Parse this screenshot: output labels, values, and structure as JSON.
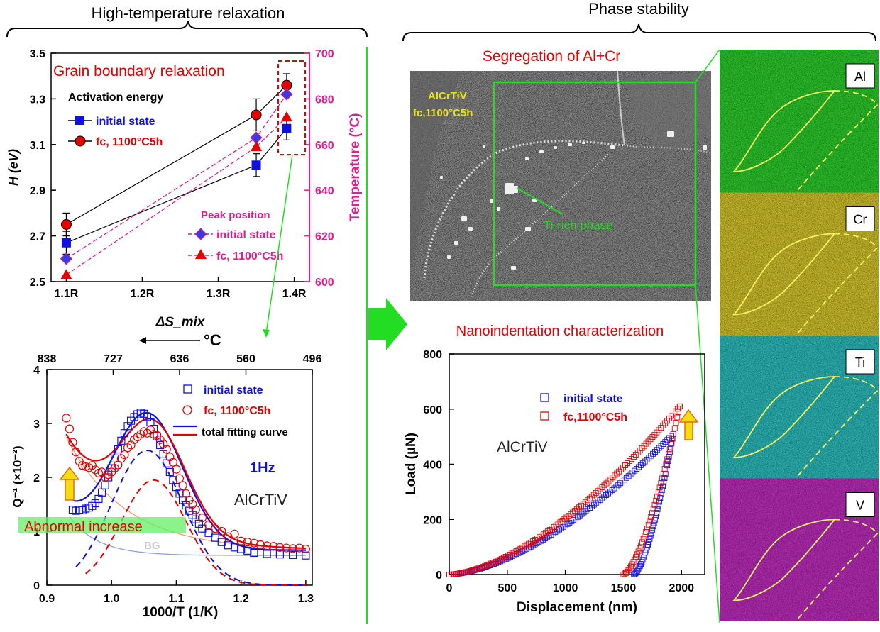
{
  "headers": {
    "left": "High-temperature relaxation",
    "right": "Phase stability"
  },
  "colors": {
    "black": "#000000",
    "red": "#e60000",
    "blue": "#1010e0",
    "magenta": "#e0208a",
    "green": "#22dd22",
    "yellow": "#f0e020",
    "bg_line": "#8aa0e8",
    "orange_line": "#f0a070"
  },
  "chart_data": [
    {
      "type": "scatter",
      "title": "Grain boundary relaxation",
      "xlabel": "ΔS_mix",
      "ylabel": "H (eV)",
      "y2label": "Temperature (°C)",
      "x_ticks": [
        "1.1R",
        "1.2R",
        "1.3R",
        "1.4R"
      ],
      "xlim": [
        1.08,
        1.42
      ],
      "ylim": [
        2.5,
        3.5
      ],
      "y_ticks": [
        "2.5",
        "2.7",
        "2.9",
        "3.1",
        "3.3",
        "3.5"
      ],
      "y2lim": [
        600,
        700
      ],
      "y2_ticks": [
        "600",
        "620",
        "640",
        "660",
        "680",
        "700"
      ],
      "legend_activation_title": "Activation energy",
      "legend_peak_title": "Peak position",
      "series": [
        {
          "name": "initial state",
          "axis": "left",
          "marker": "square",
          "x": [
            1.1,
            1.35,
            1.39
          ],
          "y": [
            2.67,
            3.01,
            3.17
          ],
          "err": [
            0.05,
            0.05,
            0.05
          ]
        },
        {
          "name": "fc, 1100°C5h",
          "axis": "left",
          "marker": "circle",
          "x": [
            1.1,
            1.35,
            1.39
          ],
          "y": [
            2.75,
            3.23,
            3.36
          ],
          "err": [
            0.05,
            0.07,
            0.05
          ]
        },
        {
          "name": "initial state",
          "axis": "right",
          "marker": "diamond",
          "x": [
            1.1,
            1.35,
            1.39
          ],
          "y": [
            610,
            663,
            682
          ]
        },
        {
          "name": "fc, 1100°C5h",
          "axis": "right",
          "marker": "triangle",
          "x": [
            1.1,
            1.35,
            1.39
          ],
          "y": [
            603,
            659,
            672
          ]
        }
      ]
    },
    {
      "type": "scatter",
      "xlabel": "1000/T (1/K)",
      "ylabel": "Q⁻¹ (×10⁻²)",
      "top_axis_label": "°C",
      "top_ticks": [
        "838",
        "727",
        "636",
        "560",
        "496"
      ],
      "xlim": [
        0.9,
        1.31
      ],
      "x_ticks": [
        "0.9",
        "1.0",
        "1.1",
        "1.2",
        "1.3"
      ],
      "ylim": [
        0,
        4
      ],
      "y_ticks": [
        "0",
        "1",
        "2",
        "3",
        "4"
      ],
      "annotations": {
        "freq": "1Hz",
        "alloy": "AlCrTiV",
        "abnormal": "Abnormal increase",
        "bg": "BG"
      },
      "legend": [
        "initial state",
        "fc, 1100°C5h",
        "total fitting curve"
      ],
      "series": [
        {
          "name": "initial state",
          "marker": "open-square",
          "x": [
            0.94,
            0.945,
            0.95,
            0.955,
            0.96,
            0.965,
            0.97,
            0.975,
            0.98,
            0.985,
            0.99,
            0.995,
            1.0,
            1.005,
            1.01,
            1.015,
            1.02,
            1.025,
            1.03,
            1.035,
            1.04,
            1.045,
            1.05,
            1.055,
            1.06,
            1.065,
            1.07,
            1.075,
            1.08,
            1.085,
            1.09,
            1.095,
            1.1,
            1.105,
            1.11,
            1.115,
            1.12,
            1.125,
            1.13,
            1.135,
            1.14,
            1.15,
            1.16,
            1.17,
            1.18,
            1.19,
            1.2,
            1.21,
            1.22,
            1.24,
            1.26,
            1.28,
            1.3
          ],
          "y": [
            1.4,
            1.38,
            1.4,
            1.39,
            1.42,
            1.44,
            1.47,
            1.52,
            1.6,
            1.72,
            1.85,
            2.0,
            2.17,
            2.35,
            2.52,
            2.68,
            2.82,
            2.95,
            3.05,
            3.12,
            3.17,
            3.2,
            3.18,
            3.12,
            3.02,
            2.9,
            2.76,
            2.6,
            2.43,
            2.26,
            2.1,
            1.95,
            1.82,
            1.7,
            1.58,
            1.48,
            1.38,
            1.3,
            1.22,
            1.14,
            1.05,
            0.97,
            0.88,
            0.8,
            0.74,
            0.7,
            0.67,
            0.64,
            0.6,
            0.58,
            0.57,
            0.56,
            0.55
          ]
        },
        {
          "name": "fc, 1100°C5h",
          "marker": "open-circle",
          "x": [
            0.93,
            0.935,
            0.94,
            0.945,
            0.95,
            0.955,
            0.96,
            0.965,
            0.97,
            0.975,
            0.98,
            0.985,
            0.99,
            0.995,
            1.0,
            1.005,
            1.01,
            1.015,
            1.02,
            1.025,
            1.03,
            1.035,
            1.04,
            1.045,
            1.05,
            1.055,
            1.06,
            1.065,
            1.07,
            1.075,
            1.08,
            1.085,
            1.09,
            1.095,
            1.1,
            1.105,
            1.11,
            1.115,
            1.12,
            1.125,
            1.13,
            1.14,
            1.15,
            1.16,
            1.17,
            1.18,
            1.19,
            1.2,
            1.21,
            1.22,
            1.23,
            1.24,
            1.25,
            1.26,
            1.27,
            1.28,
            1.29,
            1.3
          ],
          "y": [
            3.1,
            2.9,
            2.65,
            2.47,
            2.3,
            2.22,
            2.2,
            2.18,
            2.22,
            2.14,
            2.08,
            2.1,
            2.0,
            2.05,
            2.1,
            2.17,
            2.23,
            2.35,
            2.42,
            2.55,
            2.6,
            2.7,
            2.75,
            2.8,
            2.85,
            2.82,
            2.88,
            2.8,
            2.78,
            2.7,
            2.62,
            2.52,
            2.38,
            2.28,
            2.15,
            1.98,
            1.85,
            1.7,
            1.58,
            1.5,
            1.4,
            1.25,
            1.12,
            1.05,
            1.0,
            0.9,
            0.95,
            0.82,
            0.8,
            0.78,
            0.75,
            0.73,
            0.72,
            0.7,
            0.69,
            0.68,
            0.69,
            0.67
          ]
        }
      ]
    },
    {
      "type": "scatter",
      "title": "Nanoindentation characterization",
      "xlabel": "Displacement (nm)",
      "ylabel": "Load (µN)",
      "xlim": [
        0,
        2200
      ],
      "x_ticks": [
        "0",
        "500",
        "1000",
        "1500",
        "2000"
      ],
      "ylim": [
        0,
        800
      ],
      "y_ticks": [
        "0",
        "200",
        "400",
        "600",
        "800"
      ],
      "annotation": "AlCrTiV",
      "series": [
        {
          "name": "initial state",
          "marker": "open-square",
          "loading_max": [
            1930,
            510
          ],
          "unloading_end": [
            1590,
            0
          ]
        },
        {
          "name": "fc,1100°C5h",
          "marker": "open-square",
          "loading_max": [
            1985,
            610
          ],
          "unloading_end": [
            1500,
            0
          ]
        }
      ]
    }
  ],
  "sem": {
    "title": "Segregation of Al+Cr",
    "label_line1": "AlCrTiV",
    "label_line2": "fc,1100°C5h",
    "arrow_label": "Ti-rich phase"
  },
  "eds": [
    {
      "element": "Al",
      "color": "#18c018"
    },
    {
      "element": "Cr",
      "color": "#c8b818"
    },
    {
      "element": "Ti",
      "color": "#18b0b0"
    },
    {
      "element": "V",
      "color": "#b018b0"
    }
  ]
}
